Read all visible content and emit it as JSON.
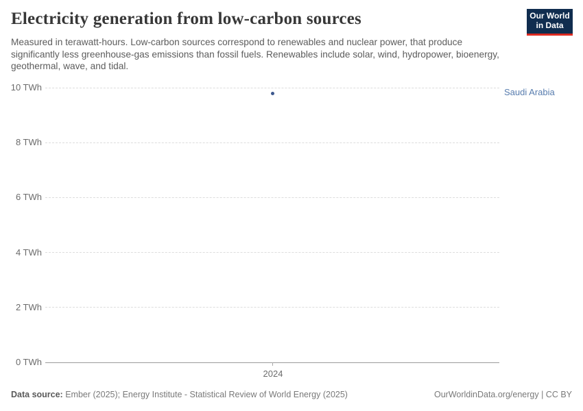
{
  "header": {
    "title": "Electricity generation from low-carbon sources",
    "subtitle": "Measured in terawatt-hours. Low-carbon sources correspond to renewables and nuclear power, that produce significantly less greenhouse-gas emissions than fossil fuels. Renewables include solar, wind, hydropower, bioenergy, geothermal, wave, and tidal.",
    "logo": {
      "line1": "Our World",
      "line2": "in Data",
      "bg_color": "#102d4f",
      "accent_color": "#dc2a20"
    }
  },
  "chart_data": {
    "type": "scatter",
    "title": "Electricity generation from low-carbon sources",
    "x": [
      2024
    ],
    "xtick_labels": [
      "2024"
    ],
    "series": [
      {
        "name": "Saudi Arabia",
        "values": [
          9.8
        ],
        "color": "#3d588e",
        "label_color": "#577cae"
      }
    ],
    "ylim": [
      0,
      10
    ],
    "yticks": [
      0,
      2,
      4,
      6,
      8,
      10
    ],
    "ytick_labels": [
      "0 TWh",
      "2 TWh",
      "4 TWh",
      "6 TWh",
      "8 TWh",
      "10 TWh"
    ],
    "unit": "TWh",
    "grid": true,
    "legend_position": "right-of-point"
  },
  "footer": {
    "source_label": "Data source:",
    "source_text": " Ember (2025); Energy Institute - Statistical Review of World Energy (2025)",
    "rights": "OurWorldinData.org/energy | CC BY"
  }
}
